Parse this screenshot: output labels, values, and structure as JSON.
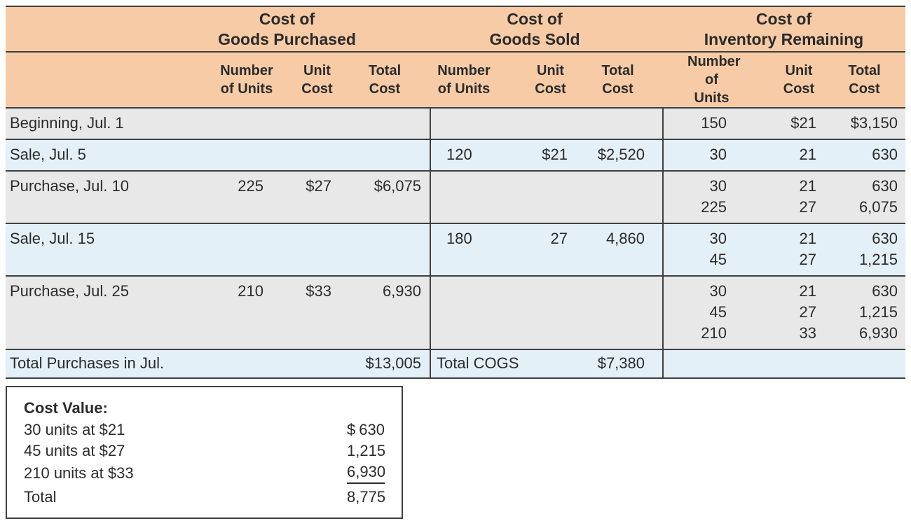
{
  "colors": {
    "header_bg": "#f6cba6",
    "row_gray": "#e8e8e8",
    "row_blue": "#e4f0f7",
    "border": "#3f3f3f",
    "text": "#2b2b2b"
  },
  "header": {
    "groups": [
      {
        "line1": "Cost of",
        "line2": "Goods Purchased"
      },
      {
        "line1": "Cost of",
        "line2": "Goods Sold"
      },
      {
        "line1": "Cost of",
        "line2": "Inventory Remaining"
      }
    ],
    "columns": {
      "units": {
        "line1": "Number",
        "line2": "of Units"
      },
      "unit_cost": {
        "line1": "Unit",
        "line2": "Cost"
      },
      "total_cost": {
        "line1": "Total",
        "line2": "Cost"
      }
    }
  },
  "rows": [
    {
      "label": "Beginning, Jul. 1",
      "remaining": [
        {
          "units": "150",
          "unit_cost": "$21",
          "total_cost": "$3,150"
        }
      ]
    },
    {
      "label": "Sale, Jul. 5",
      "cogs": {
        "units": "120",
        "unit_cost": "$21",
        "total_cost": "$2,520"
      },
      "remaining": [
        {
          "units": "30",
          "unit_cost": "21",
          "total_cost": "630"
        }
      ]
    },
    {
      "label": "Purchase, Jul. 10",
      "purchased": {
        "units": "225",
        "unit_cost": "$27",
        "total_cost": "$6,075"
      },
      "remaining": [
        {
          "units": "30",
          "unit_cost": "21",
          "total_cost": "630"
        },
        {
          "units": "225",
          "unit_cost": "27",
          "total_cost": "6,075"
        }
      ]
    },
    {
      "label": "Sale, Jul. 15",
      "cogs": {
        "units": "180",
        "unit_cost": "27",
        "total_cost": "4,860"
      },
      "remaining": [
        {
          "units": "30",
          "unit_cost": "21",
          "total_cost": "630"
        },
        {
          "units": "45",
          "unit_cost": "27",
          "total_cost": "1,215"
        }
      ]
    },
    {
      "label": "Purchase, Jul. 25",
      "purchased": {
        "units": "210",
        "unit_cost": "$33",
        "total_cost": "6,930"
      },
      "remaining": [
        {
          "units": "30",
          "unit_cost": "21",
          "total_cost": "630"
        },
        {
          "units": "45",
          "unit_cost": "27",
          "total_cost": "1,215"
        },
        {
          "units": "210",
          "unit_cost": "33",
          "total_cost": "6,930"
        }
      ]
    }
  ],
  "totals": {
    "purchases_label": "Total Purchases in Jul.",
    "purchases_total": "$13,005",
    "cogs_label": "Total COGS",
    "cogs_total": "$7,380"
  },
  "cost_value": {
    "title": "Cost Value:",
    "lines": [
      {
        "label": "30 units at $21",
        "currency": "$",
        "amount": "630"
      },
      {
        "label": "45 units at $27",
        "currency": "",
        "amount": "1,215"
      },
      {
        "label": "210 units at $33",
        "currency": "",
        "amount": "6,930"
      },
      {
        "label": "Total",
        "currency": "",
        "amount": "8,775"
      }
    ]
  }
}
